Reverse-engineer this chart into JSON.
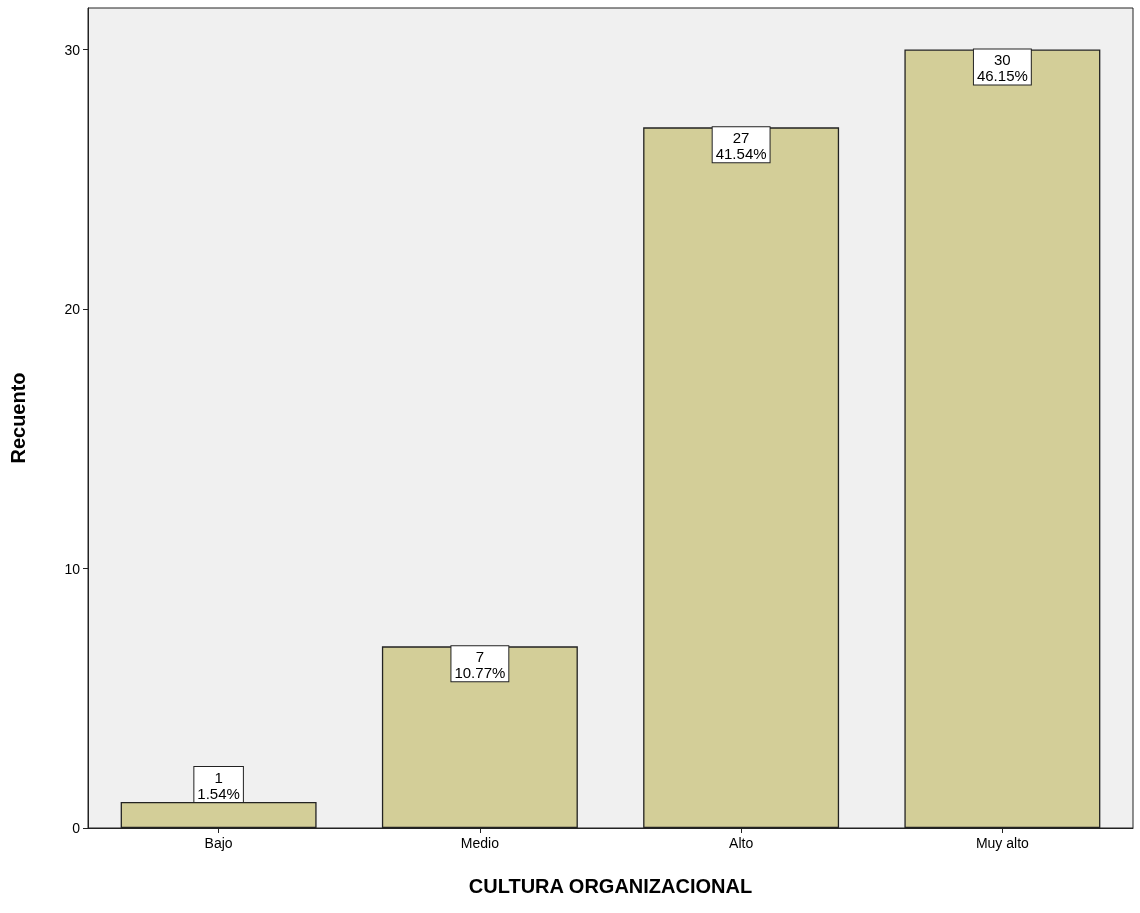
{
  "chart_data": {
    "type": "bar",
    "xlabel": "CULTURA ORGANIZACIONAL",
    "ylabel": "Recuento",
    "categories": [
      "Bajo",
      "Medio",
      "Alto",
      "Muy alto"
    ],
    "series": [
      {
        "color": "#d3ce98",
        "values": [
          1,
          7,
          27,
          30
        ],
        "value_labels": [
          "1\n1.54%",
          "7\n10.77%",
          "27\n41.54%",
          "30\n46.15%"
        ]
      }
    ],
    "ylim": [
      0,
      31.6
    ],
    "yticks": [
      0,
      10,
      20,
      30
    ],
    "grid": false
  }
}
